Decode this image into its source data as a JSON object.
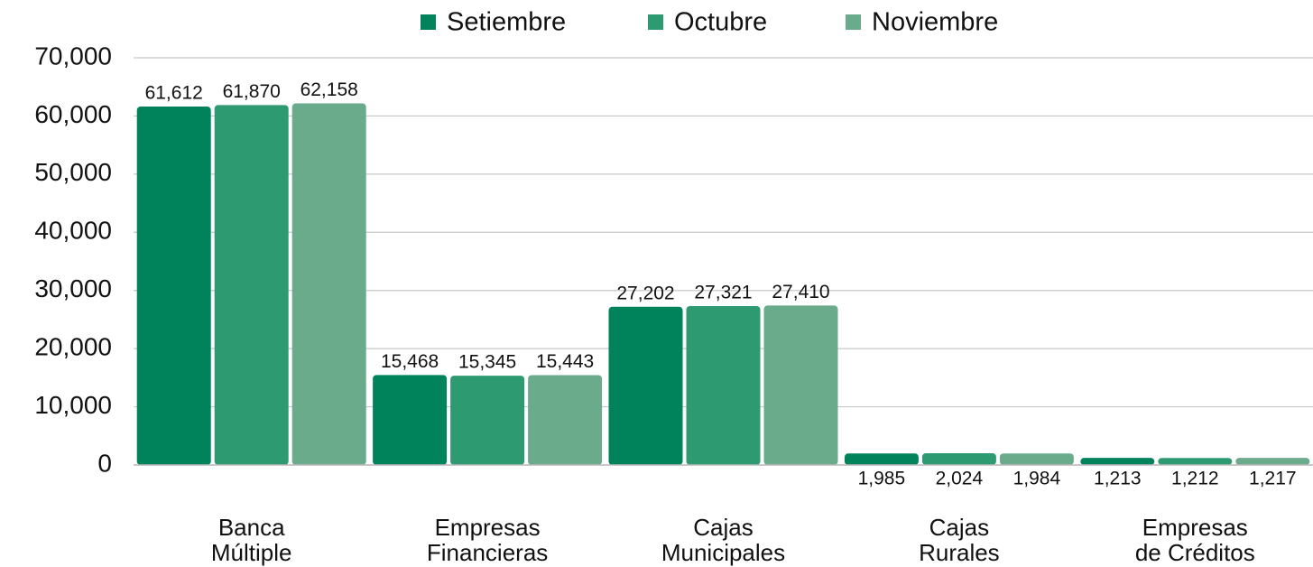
{
  "chart_data": {
    "type": "bar",
    "categories": [
      [
        "Banca",
        "Múltiple"
      ],
      [
        "Empresas",
        "Financieras"
      ],
      [
        "Cajas",
        "Municipales"
      ],
      [
        "Cajas",
        "Rurales"
      ],
      [
        "Empresas",
        "de Créditos"
      ]
    ],
    "series": [
      {
        "name": "Setiembre",
        "color": "#00835a",
        "values": [
          61612,
          15468,
          27202,
          1985,
          1213
        ],
        "value_labels": [
          "61,612",
          "15,468",
          "27,202",
          "1,985",
          "1,213"
        ]
      },
      {
        "name": "Octubre",
        "color": "#2e9a72",
        "values": [
          61870,
          15345,
          27321,
          2024,
          1212
        ],
        "value_labels": [
          "61,870",
          "15,345",
          "27,321",
          "2,024",
          "1,212"
        ]
      },
      {
        "name": "Noviembre",
        "color": "#6aab8c",
        "values": [
          62158,
          15443,
          27410,
          1984,
          1217
        ],
        "value_labels": [
          "62,158",
          "15,443",
          "27,410",
          "1,984",
          "1,217"
        ]
      }
    ],
    "ylim": [
      0,
      70000
    ],
    "yticks": [
      0,
      {
        "value": 10000,
        "label": "10,000"
      },
      {
        "value": 20000,
        "label": "20,000"
      },
      {
        "value": 30000,
        "label": "30,000"
      },
      {
        "value": 40000,
        "label": "40,000"
      },
      {
        "value": 50000,
        "label": "50,000"
      },
      {
        "value": 60000,
        "label": "60,000"
      },
      {
        "value": 70000,
        "label": "70,000"
      }
    ],
    "grid": true,
    "legend": "top"
  }
}
